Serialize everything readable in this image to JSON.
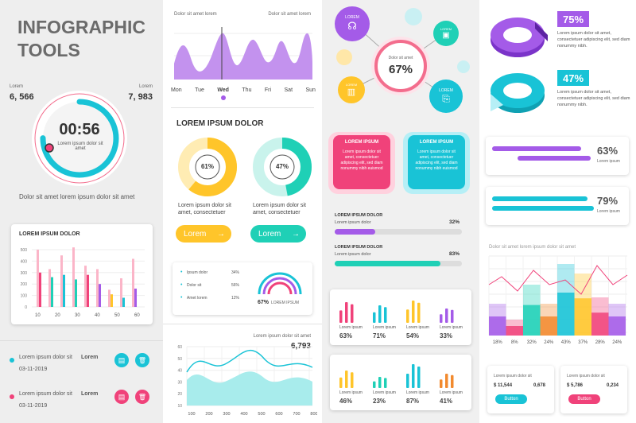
{
  "title": {
    "line1": "INFOGRAPHIC",
    "line2": "TOOLS"
  },
  "timer": {
    "left_label": "Lorem",
    "left_value": "6, 566",
    "right_label": "Lorem",
    "right_value": "7, 983",
    "time": "00:56",
    "caption": "Lorem ipsum dolor sit amet",
    "footer": "Dolor sit amet lorem ipsum dolor sit amet",
    "progress": 0.75
  },
  "barcard1": {
    "title": "LOREM IPSUM DOLOR",
    "yticks": [
      "500",
      "400",
      "300",
      "200",
      "100",
      "0"
    ],
    "xticks": [
      "10",
      "20",
      "30",
      "40",
      "50",
      "60"
    ],
    "bars": [
      [
        500,
        300
      ],
      [
        330,
        260
      ],
      [
        450,
        280
      ],
      [
        520,
        240
      ],
      [
        360,
        280
      ],
      [
        330,
        200
      ],
      [
        150,
        110
      ],
      [
        250,
        80
      ],
      [
        420,
        160
      ]
    ]
  },
  "list": [
    {
      "text": "Lorem ipsum dolor sit",
      "date": "03-11-2019",
      "label": "Lorem",
      "color": "#19c3d6"
    },
    {
      "text": "Lorem ipsum dolor sit",
      "date": "03-11-2019",
      "label": "Lorem",
      "color": "#f0427a"
    }
  ],
  "wave": {
    "left": "Dolor sit amet lorem",
    "right": "Dolor sit amet lorem",
    "days": [
      "Mon",
      "Tue",
      "Wed",
      "Thu",
      "Fri",
      "Sat",
      "Sun"
    ],
    "active_day": "Wed"
  },
  "donuts": {
    "title": "LOREM IPSUM DOLOR",
    "items": [
      {
        "pct": "61%",
        "value": 0.61,
        "color": "#ffc52a",
        "caption": "Lorem ipsum dolor sit amet, consectetuer",
        "button": "Lorem"
      },
      {
        "pct": "47%",
        "value": 0.47,
        "color": "#1fd0b6",
        "caption": "Lorem ipsum dolor sit amet, consectetuer",
        "button": "Lorem"
      }
    ]
  },
  "minilist": {
    "rows": [
      {
        "label": "Ipsum dolor",
        "pct": "34%"
      },
      {
        "label": "Dolor sit",
        "pct": "56%"
      },
      {
        "label": "Amet lorem",
        "pct": "12%"
      }
    ],
    "gauge_pct": "67%",
    "gauge_label": "LOREM IPSUM"
  },
  "area": {
    "title": "Lorem ipsum dolor sit amet",
    "value": "6,793",
    "yticks": [
      "60",
      "50",
      "40",
      "30",
      "20",
      "10"
    ],
    "xticks": [
      "100",
      "200",
      "300",
      "400",
      "500",
      "600",
      "700",
      "800"
    ]
  },
  "hub": {
    "pct": "67%",
    "label": "Dolor sit amet",
    "nodes": [
      "LOREM",
      "LOREM",
      "LOREM",
      "LOREM"
    ]
  },
  "boxes": [
    {
      "title": "LOREM IPSUM",
      "text": "Lorem ipsum dolor sit amet, consectetuer adipiscing elit, sed diam nonummy nibh euismod"
    },
    {
      "title": "LOREM IPSUM",
      "text": "Lorem ipsum dolor sit amet, consectetuer adipiscing elit, sed diam nonummy nibh euismod"
    }
  ],
  "bars_progress": [
    {
      "title": "LOREM IPSUM DOLOR",
      "sub": "Lorem ipsum dolor",
      "pct": "32%",
      "value": 0.32,
      "color": "#a45be8"
    },
    {
      "title": "LOREM IPSUM DOLOR",
      "sub": "Lorem ipsum dolor",
      "pct": "83%",
      "value": 0.83,
      "color": "#1fd0b6"
    }
  ],
  "bargroup": [
    {
      "items": [
        {
          "label": "Lorem ipsum",
          "pct": "63%",
          "color": "#f0427a"
        },
        {
          "label": "Lorem ipsum",
          "pct": "71%",
          "color": "#19c3d6"
        },
        {
          "label": "Lorem ipsum",
          "pct": "54%",
          "color": "#ffc52a"
        },
        {
          "label": "Lorem ipsum",
          "pct": "33%",
          "color": "#a45be8"
        }
      ]
    },
    {
      "items": [
        {
          "label": "Lorem ipsum",
          "pct": "46%",
          "color": "#ffc52a"
        },
        {
          "label": "Lorem ipsum",
          "pct": "23%",
          "color": "#1fd0b6"
        },
        {
          "label": "Lorem ipsum",
          "pct": "87%",
          "color": "#19c3d6"
        },
        {
          "label": "Lorem ipsum",
          "pct": "41%",
          "color": "#f28a2e"
        }
      ]
    }
  ],
  "rings": [
    {
      "pct": "75%",
      "color": "#a45be8",
      "text": "Lorem ipsum dolor sit amet, consectetuer adipiscing elit, sed diam nonummy nibh."
    },
    {
      "pct": "47%",
      "color": "#19c3d6",
      "text": "Lorem ipsum dolor sit amet, consectetuer adipiscing elit, sed diam nonummy nibh."
    }
  ],
  "hbars": [
    {
      "pct": "63%",
      "label": "Lorem ipsum",
      "color": "#a45be8"
    },
    {
      "pct": "79%",
      "label": "Lorem ipsum",
      "color": "#19c3d6"
    }
  ],
  "combo": {
    "title": "Dolor sit amet lorem ipsum dolor sit amet",
    "xlabels": [
      "18%",
      "8%",
      "32%",
      "24%",
      "43%",
      "37%",
      "28%",
      "24%"
    ]
  },
  "stats": [
    {
      "label": "Lorem ipsum dolor sit",
      "v1": "$ 11,544",
      "v2": "0,678",
      "button": "Button",
      "color": "#19c3d6"
    },
    {
      "label": "Lorem ipsum dolor sit",
      "v1": "$ 5,786",
      "v2": "0,234",
      "button": "Button",
      "color": "#f0427a"
    }
  ]
}
